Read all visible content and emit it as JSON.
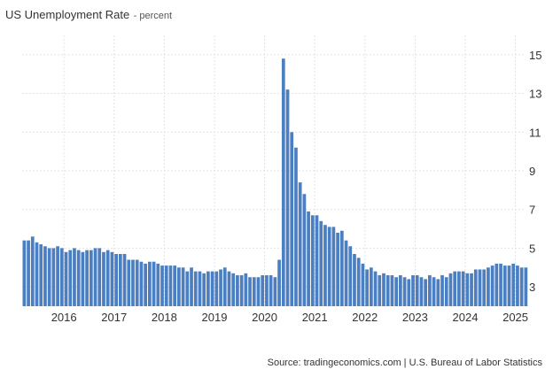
{
  "chart_data": {
    "type": "bar",
    "title": "US Unemployment Rate",
    "subtitle": "percent",
    "xlabel": "",
    "ylabel": "",
    "ylim": [
      2,
      16
    ],
    "yticks": [
      3,
      5,
      7,
      9,
      11,
      13,
      15
    ],
    "xticks": [
      "2016",
      "2017",
      "2018",
      "2019",
      "2020",
      "2021",
      "2022",
      "2023",
      "2024",
      "2025"
    ],
    "start": "2015-03",
    "end": "2025-02",
    "grid": true,
    "bar_color": "#4b7fc1",
    "values": [
      5.4,
      5.4,
      5.6,
      5.3,
      5.2,
      5.1,
      5.0,
      5.0,
      5.1,
      5.0,
      4.8,
      4.9,
      5.0,
      4.9,
      4.8,
      4.9,
      4.9,
      5.0,
      5.0,
      4.8,
      4.9,
      4.8,
      4.7,
      4.7,
      4.7,
      4.4,
      4.4,
      4.4,
      4.3,
      4.2,
      4.3,
      4.3,
      4.2,
      4.1,
      4.1,
      4.1,
      4.1,
      4.0,
      4.0,
      3.8,
      4.0,
      3.8,
      3.8,
      3.7,
      3.8,
      3.8,
      3.8,
      3.9,
      4.0,
      3.8,
      3.7,
      3.6,
      3.6,
      3.7,
      3.5,
      3.5,
      3.5,
      3.6,
      3.6,
      3.6,
      3.5,
      4.4,
      14.8,
      13.2,
      11.0,
      10.2,
      8.4,
      7.8,
      6.9,
      6.7,
      6.7,
      6.4,
      6.2,
      6.1,
      6.1,
      5.8,
      5.9,
      5.4,
      5.1,
      4.7,
      4.5,
      4.2,
      3.9,
      4.0,
      3.8,
      3.6,
      3.7,
      3.6,
      3.6,
      3.5,
      3.6,
      3.5,
      3.4,
      3.6,
      3.6,
      3.5,
      3.4,
      3.6,
      3.5,
      3.4,
      3.6,
      3.5,
      3.7,
      3.8,
      3.8,
      3.8,
      3.7,
      3.7,
      3.9,
      3.9,
      3.9,
      4.0,
      4.1,
      4.2,
      4.2,
      4.1,
      4.1,
      4.2,
      4.1,
      4.0,
      4.0
    ]
  },
  "source": "Source: tradingeconomics.com | U.S. Bureau of Labor Statistics"
}
